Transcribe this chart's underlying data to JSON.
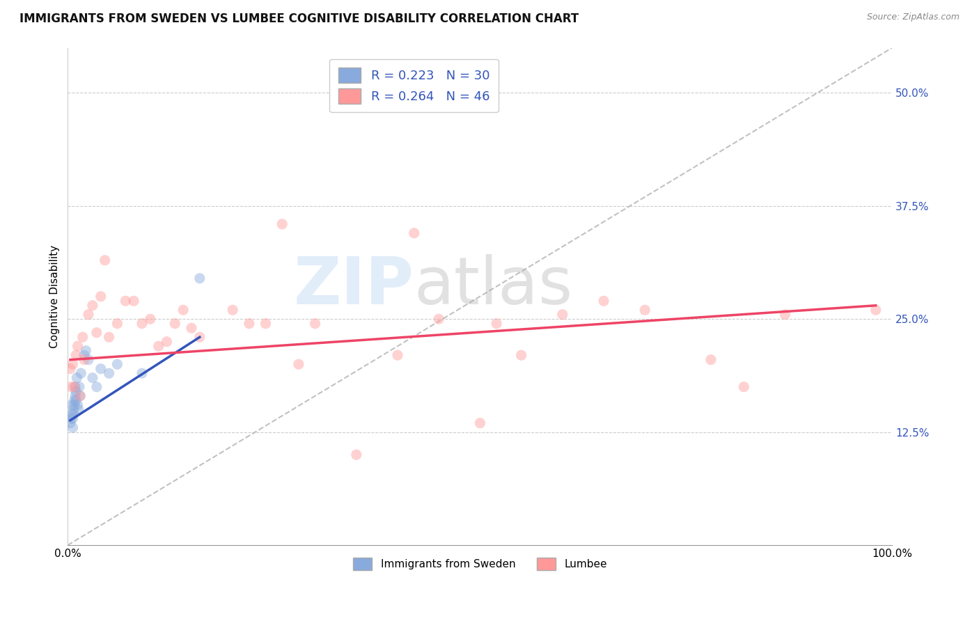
{
  "title": "IMMIGRANTS FROM SWEDEN VS LUMBEE COGNITIVE DISABILITY CORRELATION CHART",
  "source": "Source: ZipAtlas.com",
  "ylabel": "Cognitive Disability",
  "xlim": [
    0.0,
    1.0
  ],
  "ylim": [
    0.0,
    0.55
  ],
  "yticks": [
    0.125,
    0.25,
    0.375,
    0.5
  ],
  "ytick_labels": [
    "12.5%",
    "25.0%",
    "37.5%",
    "50.0%"
  ],
  "xticks": [
    0.0,
    0.2,
    0.4,
    0.6,
    0.8,
    1.0
  ],
  "xtick_labels": [
    "0.0%",
    "",
    "",
    "",
    "",
    "100.0%"
  ],
  "legend1_R": "0.223",
  "legend1_N": "30",
  "legend2_R": "0.264",
  "legend2_N": "46",
  "blue_scatter_x": [
    0.003,
    0.004,
    0.005,
    0.005,
    0.006,
    0.006,
    0.007,
    0.007,
    0.008,
    0.008,
    0.009,
    0.009,
    0.01,
    0.01,
    0.011,
    0.012,
    0.013,
    0.014,
    0.015,
    0.016,
    0.02,
    0.022,
    0.025,
    0.03,
    0.035,
    0.04,
    0.05,
    0.06,
    0.09,
    0.16
  ],
  "blue_scatter_y": [
    0.135,
    0.14,
    0.145,
    0.155,
    0.13,
    0.14,
    0.15,
    0.145,
    0.155,
    0.16,
    0.175,
    0.165,
    0.16,
    0.17,
    0.185,
    0.155,
    0.15,
    0.175,
    0.165,
    0.19,
    0.21,
    0.215,
    0.205,
    0.185,
    0.175,
    0.195,
    0.19,
    0.2,
    0.19,
    0.295
  ],
  "pink_scatter_x": [
    0.003,
    0.004,
    0.006,
    0.008,
    0.01,
    0.012,
    0.015,
    0.018,
    0.02,
    0.025,
    0.03,
    0.035,
    0.04,
    0.045,
    0.05,
    0.06,
    0.07,
    0.08,
    0.09,
    0.1,
    0.11,
    0.12,
    0.13,
    0.14,
    0.15,
    0.16,
    0.2,
    0.22,
    0.24,
    0.26,
    0.28,
    0.3,
    0.35,
    0.4,
    0.42,
    0.45,
    0.5,
    0.52,
    0.55,
    0.6,
    0.65,
    0.7,
    0.78,
    0.82,
    0.87,
    0.98
  ],
  "pink_scatter_y": [
    0.195,
    0.175,
    0.2,
    0.175,
    0.21,
    0.22,
    0.165,
    0.23,
    0.205,
    0.255,
    0.265,
    0.235,
    0.275,
    0.315,
    0.23,
    0.245,
    0.27,
    0.27,
    0.245,
    0.25,
    0.22,
    0.225,
    0.245,
    0.26,
    0.24,
    0.23,
    0.26,
    0.245,
    0.245,
    0.355,
    0.2,
    0.245,
    0.1,
    0.21,
    0.345,
    0.25,
    0.135,
    0.245,
    0.21,
    0.255,
    0.27,
    0.26,
    0.205,
    0.175,
    0.255,
    0.26
  ],
  "blue_line_x": [
    0.003,
    0.16
  ],
  "blue_line_y": [
    0.138,
    0.23
  ],
  "pink_line_x": [
    0.003,
    0.98
  ],
  "pink_line_y": [
    0.205,
    0.265
  ],
  "diagonal_line_x": [
    0.0,
    1.0
  ],
  "diagonal_line_y": [
    0.0,
    0.55
  ],
  "scatter_alpha": 0.45,
  "scatter_size": 120,
  "blue_color": "#88AADD",
  "pink_color": "#FF9999",
  "blue_line_color": "#3355BB",
  "pink_line_color": "#EE4466",
  "diagonal_color": "#BBBBBB",
  "background_color": "#FFFFFF",
  "watermark_zip": "ZIP",
  "watermark_atlas": "atlas",
  "title_fontsize": 12,
  "label_fontsize": 11,
  "tick_fontsize": 11,
  "legend_fontsize": 13
}
